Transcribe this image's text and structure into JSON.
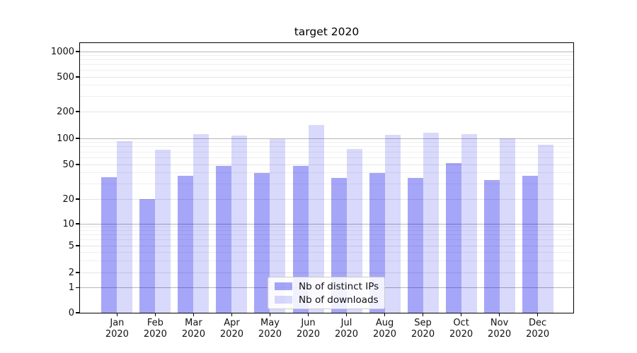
{
  "chart_data": {
    "type": "bar",
    "title": "target 2020",
    "background_color": "#ffffff",
    "grid": true,
    "y_scale": "symlog",
    "y_ticks": [
      0,
      1,
      2,
      5,
      10,
      20,
      50,
      100,
      200,
      500,
      1000
    ],
    "ylim": [
      0,
      1250
    ],
    "xlabel": "",
    "ylabel": "",
    "x_year": "2020",
    "months": [
      "Jan",
      "Feb",
      "Mar",
      "Apr",
      "May",
      "Jun",
      "Jul",
      "Aug",
      "Sep",
      "Oct",
      "Nov",
      "Dec"
    ],
    "categories": [
      "Jan 2020",
      "Feb 2020",
      "Mar 2020",
      "Apr 2020",
      "May 2020",
      "Jun 2020",
      "Jul 2020",
      "Aug 2020",
      "Sep 2020",
      "Oct 2020",
      "Nov 2020",
      "Dec 2020"
    ],
    "series": [
      {
        "name": "Nb of distinct IPs",
        "color": "rgba(0,0,235,0.35)",
        "color_hex": "#a6a6f8",
        "values": [
          36,
          20,
          37,
          48,
          40,
          48,
          35,
          40,
          35,
          52,
          33,
          37
        ]
      },
      {
        "name": "Nb of downloads",
        "color": "rgba(0,0,235,0.15)",
        "color_hex": "#dedefc",
        "values": [
          93,
          74,
          112,
          108,
          98,
          142,
          75,
          110,
          116,
          112,
          100,
          85
        ]
      }
    ],
    "legend": {
      "position": "lower center",
      "entries": [
        "Nb of distinct IPs",
        "Nb of downloads"
      ]
    }
  }
}
